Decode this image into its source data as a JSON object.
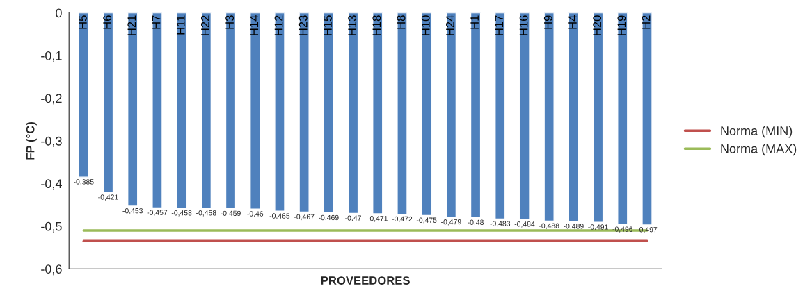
{
  "chart_data": {
    "type": "bar",
    "xlabel": "PROVEEDORES",
    "ylabel": "FP (°C)",
    "categories": [
      "H5",
      "H6",
      "H21",
      "H7",
      "H11",
      "H22",
      "H3",
      "H14",
      "H12",
      "H23",
      "H15",
      "H13",
      "H18",
      "H8",
      "H10",
      "H24",
      "H1",
      "H17",
      "H16",
      "H9",
      "H4",
      "H20",
      "H19",
      "H2"
    ],
    "series": [
      {
        "color": "#4f81bd",
        "values": [
          -0.385,
          -0.421,
          -0.453,
          -0.457,
          -0.458,
          -0.458,
          -0.459,
          -0.46,
          -0.465,
          -0.467,
          -0.469,
          -0.47,
          -0.471,
          -0.472,
          -0.475,
          -0.479,
          -0.48,
          -0.483,
          -0.484,
          -0.488,
          -0.489,
          -0.491,
          -0.496,
          -0.497
        ],
        "value_labels": [
          "-0,385",
          "-0,421",
          "-0,453",
          "-0,457",
          "-0,458",
          "-0,458",
          "-0,459",
          "-0,46",
          "-0,465",
          "-0,467",
          "-0,469",
          "-0,47",
          "-0,471",
          "-0,472",
          "-0,475",
          "-0,479",
          "-0,48",
          "-0,483",
          "-0,484",
          "-0,488",
          "-0,489",
          "-0,491",
          "-0,496",
          "-0,497"
        ]
      },
      {
        "type": "line",
        "name": "Norma (MIN)",
        "color": "#c0504d",
        "values": [
          -0.535,
          -0.535,
          -0.535,
          -0.535,
          -0.535,
          -0.535,
          -0.535,
          -0.535,
          -0.535,
          -0.535,
          -0.535,
          -0.535,
          -0.535,
          -0.535,
          -0.535,
          -0.535,
          -0.535,
          -0.535,
          -0.535,
          -0.535,
          -0.535,
          -0.535,
          -0.535,
          -0.535
        ]
      },
      {
        "type": "line",
        "name": "Norma (MAX)",
        "color": "#9bbb59",
        "values": [
          -0.51,
          -0.51,
          -0.51,
          -0.51,
          -0.51,
          -0.51,
          -0.51,
          -0.51,
          -0.51,
          -0.51,
          -0.51,
          -0.51,
          -0.51,
          -0.51,
          -0.51,
          -0.51,
          -0.51,
          -0.51,
          -0.51,
          -0.51,
          -0.51,
          -0.51,
          -0.51,
          -0.51
        ]
      }
    ],
    "ylim": [
      -0.6,
      0
    ],
    "yticks": [
      {
        "value": -0.6,
        "label": "-0,6"
      },
      {
        "value": -0.5,
        "label": "-0,5"
      },
      {
        "value": -0.4,
        "label": "-0,4"
      },
      {
        "value": -0.3,
        "label": "-0,3"
      },
      {
        "value": -0.2,
        "label": "-0,2"
      },
      {
        "value": -0.1,
        "label": "-0,1"
      },
      {
        "value": 0,
        "label": "0"
      }
    ],
    "grid": false,
    "legend": "right"
  }
}
